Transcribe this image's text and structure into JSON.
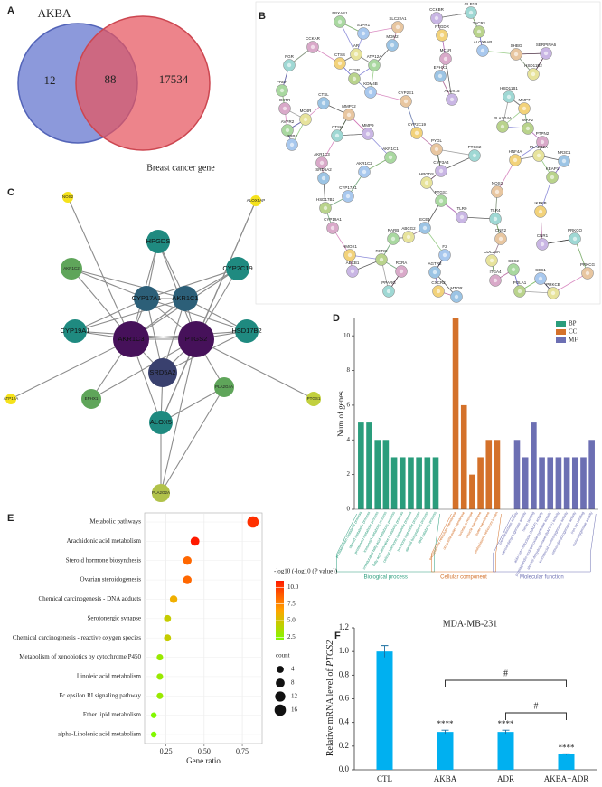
{
  "panel_labels": [
    "A",
    "B",
    "C",
    "D",
    "E",
    "F"
  ],
  "venn": {
    "left": "AKBA",
    "right": "Breast cancer gene",
    "only_left": 12,
    "overlap": 88,
    "only_right": 17534
  },
  "network_b": {
    "nodes": [
      "FBXAS1",
      "S1PR1",
      "SLC22A1",
      "CCKBR",
      "GLP1R",
      "PTGDR",
      "TACR1",
      "CCKAR",
      "MDM2",
      "AR",
      "ATP12A",
      "ALOX5AP",
      "SHBG",
      "SERPINA6",
      "PGR",
      "CTSS",
      "CTSB",
      "MC1R",
      "EPHX1",
      "HSD11B2",
      "PREP",
      "KDM4B",
      "CYP2E1",
      "ALOX15",
      "HSD11B1",
      "MMP7",
      "MAP2",
      "OXTR",
      "CTSL",
      "MC4R",
      "AVPR2",
      "RBP4",
      "MMP12",
      "MMP9",
      "CTSK",
      "CYP2C19",
      "PLA2G4A",
      "PTPN2",
      "NR3C1",
      "PLA2G2A",
      "AKR1C1",
      "AKR1C2",
      "PYGL",
      "CYP3A4",
      "PTGS2",
      "HNF4A",
      "KEAP1",
      "AKR1C3",
      "SRD5A2",
      "HPGDS",
      "PTGS1",
      "CYP17A1",
      "NOS2",
      "TLR9",
      "TLR4",
      "IKBKB",
      "HSD17B2",
      "CYP19A1",
      "ECE1",
      "ABCG2",
      "RARB",
      "F2",
      "CNR2",
      "CNR1",
      "PRKCQ",
      "HMOX1",
      "RXRG",
      "RXRA",
      "AGTR2",
      "CDC25A",
      "CES2",
      "CES1",
      "PRKCG",
      "ABCB1",
      "PPARG",
      "CXCR2",
      "POLA1",
      "ITGA4",
      "MTOR",
      "PRKCB"
    ]
  },
  "network_c": {
    "nodes": [
      {
        "label": "NOS2",
        "color": "#f5e21b"
      },
      {
        "label": "ALOX5AP",
        "color": "#f5e21b"
      },
      {
        "label": "HPGDS",
        "color": "#1f8a80"
      },
      {
        "label": "AKR1C2",
        "color": "#5fa55a"
      },
      {
        "label": "CYP2C19",
        "color": "#1f8a80"
      },
      {
        "label": "CYP17A1",
        "color": "#2c5f78"
      },
      {
        "label": "AKR1C1",
        "color": "#2c5f78"
      },
      {
        "label": "CYP19A1",
        "color": "#1f8a80"
      },
      {
        "label": "AKR1C3",
        "color": "#46115a"
      },
      {
        "label": "PTGS2",
        "color": "#46115a"
      },
      {
        "label": "HSD17B2",
        "color": "#1f8a80"
      },
      {
        "label": "SRD5A2",
        "color": "#39406e"
      },
      {
        "label": "ATP12A",
        "color": "#f5e21b"
      },
      {
        "label": "PTGS1",
        "color": "#c2d03f"
      },
      {
        "label": "EPHX1",
        "color": "#5fa55a"
      },
      {
        "label": "PLA2G4A",
        "color": "#5fa55a"
      },
      {
        "label": "ALOX5",
        "color": "#1f8a80"
      },
      {
        "label": "PLA2G2A",
        "color": "#b1c24a"
      }
    ]
  },
  "chart_data": [
    {
      "type": "bar",
      "ylabel": "Num of genes",
      "ylim": [
        0,
        11
      ],
      "yticks": [
        0,
        2,
        4,
        6,
        8,
        10
      ],
      "groups": [
        {
          "name": "BP",
          "label": "Biological process",
          "color": "#2a9d7c",
          "categories": [
            "prostaglandin metabolic process",
            "steroid metabolic process",
            "prostanoid metabolic process",
            "icosanoid metabolic process",
            "unsaturated fatty acid metabolic process",
            "fatty acid derivative metabolic process",
            "cellular hormone metabolic process",
            "hormone metabolic process",
            "steroid biosynthetic process",
            "lipid catabolic process"
          ],
          "values": [
            5,
            5,
            4,
            4,
            3,
            3,
            3,
            3,
            3,
            3
          ]
        },
        {
          "name": "CC",
          "label": "Cellular component",
          "color": "#d4712a",
          "categories": [
            "endoplasmic reticulum membrane",
            "organelle outer membrane",
            "nuclear envelope",
            "vesicle membrane",
            "outer membrane",
            "endoplasmic reticulum lumen"
          ],
          "values": [
            11,
            6,
            2,
            3,
            4,
            4
          ]
        },
        {
          "name": "MF",
          "label": "Molecular function",
          "color": "#6c6fb3",
          "categories": [
            "oxidoreductase activity",
            "steroid dehydrogenase activity",
            "heme binding",
            "aldo-keto reductase (NADP) activity",
            "prostaglandin-endoperoxide synthase activity",
            "alcohol dehydrogenase (NADP+) activity",
            "ketosteroid monooxygenase activity",
            "retinol dehydrogenase activity",
            "iron ion binding",
            "monooxygenase activity"
          ],
          "values": [
            4,
            3,
            5,
            3,
            3,
            3,
            3,
            3,
            3,
            4
          ]
        }
      ]
    },
    {
      "type": "scatter",
      "xlabel": "Gene ratio",
      "categories": [
        "Metabolic pathways",
        "Arachidonic acid metabolism",
        "Steroid hormone biosynthesis",
        "Ovarian steroidogenesis",
        "Chemical carcinogenesis - DNA adducts",
        "Serotonergic synapse",
        "Chemical carcinogenesis - reactive oxygen species",
        "Metabolism of xenobiotics by cytochrome P450",
        "Linoleic acid metabolism",
        "Fc epsilon RI signaling pathway",
        "Ether lipid metabolism",
        "alpha-Linolenic acid metabolism"
      ],
      "x": [
        0.82,
        0.44,
        0.39,
        0.39,
        0.3,
        0.26,
        0.26,
        0.21,
        0.21,
        0.21,
        0.17,
        0.17
      ],
      "color_values": [
        10.3,
        11,
        8.5,
        8.5,
        6,
        4.5,
        4.5,
        3,
        3,
        3,
        2.2,
        2.2
      ],
      "sizes": [
        16,
        8,
        7,
        7,
        5,
        4,
        4,
        3,
        3,
        3,
        2,
        2
      ],
      "xlim": [
        0.11,
        0.88
      ],
      "xticks": [
        {
          "value": 0.25,
          "label": "0.25"
        },
        {
          "value": 0.5,
          "label": "0.50"
        },
        {
          "value": 0.75,
          "label": "0.75"
        }
      ],
      "color_legend": {
        "title": "-log10 (-log10 (P value))",
        "range": [
          2,
          11
        ],
        "colors": [
          "#7cfc00",
          "#ffa500",
          "#ff1a00"
        ],
        "ticks": [
          {
            "value": 2.5,
            "label": "2.5"
          },
          {
            "value": 5,
            "label": "5.0"
          },
          {
            "value": 7.5,
            "label": "7.5"
          },
          {
            "value": 10,
            "label": "10.0"
          }
        ]
      },
      "size_legend": {
        "title": "count",
        "values": [
          4,
          8,
          12,
          16
        ]
      }
    },
    {
      "type": "bar",
      "title": "MDA-MB-231",
      "ylabel": "Relative mRNA level of",
      "ylabel_gene": "PTGS2",
      "categories": [
        "CTL",
        "AKBA",
        "ADR",
        "AKBA+ADR"
      ],
      "values": [
        1.0,
        0.32,
        0.32,
        0.13
      ],
      "errors": [
        0.05,
        0.015,
        0.015,
        0.005
      ],
      "annotations": [
        null,
        "****",
        "****",
        "****"
      ],
      "brackets": [
        "#",
        "#"
      ],
      "color": "#00b0f0",
      "ylim": [
        0,
        1.2
      ],
      "yticks": [
        {
          "value": 0,
          "label": "0.0"
        },
        {
          "value": 0.2,
          "label": "0.2"
        },
        {
          "value": 0.4,
          "label": "0.4"
        },
        {
          "value": 0.6,
          "label": "0.6"
        },
        {
          "value": 0.8,
          "label": "0.8"
        },
        {
          "value": 1.0,
          "label": "1.0"
        },
        {
          "value": 1.2,
          "label": "1.2"
        }
      ]
    }
  ]
}
